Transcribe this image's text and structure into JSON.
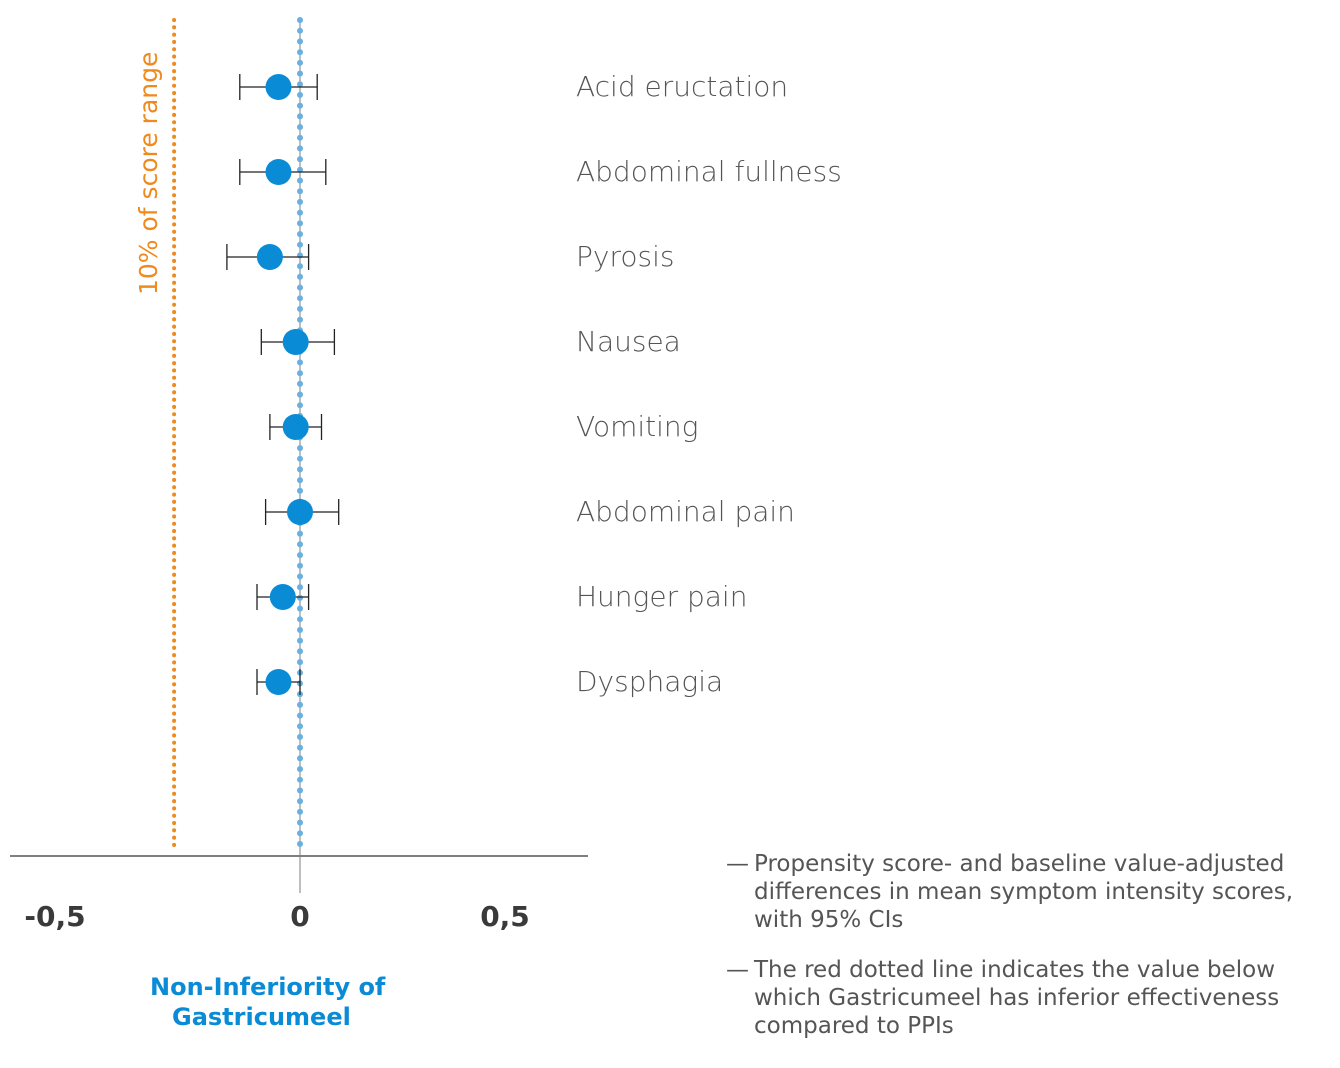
{
  "chart_data": {
    "type": "forest",
    "categories": [
      "Acid eructation",
      "Abdominal fullness",
      "Pyrosis",
      "Nausea",
      "Vomiting",
      "Abdominal pain",
      "Hunger pain",
      "Dysphagia"
    ],
    "series": [
      {
        "estimates": [
          -0.05,
          -0.05,
          -0.07,
          -0.01,
          -0.01,
          0.0,
          -0.04,
          -0.05
        ],
        "ci_low": [
          -0.14,
          -0.14,
          -0.17,
          -0.09,
          -0.07,
          -0.08,
          -0.1,
          -0.1
        ],
        "ci_high": [
          0.04,
          0.06,
          0.02,
          0.08,
          0.05,
          0.09,
          0.02,
          0.0
        ]
      }
    ],
    "threshold": {
      "value": -0.23,
      "label": "10% of score range",
      "color": "#ef8a1c"
    },
    "reference_line": {
      "value": 0,
      "color": "#6ab0e0"
    },
    "xticks": [
      "-0,5",
      "0",
      "0,5"
    ],
    "xtick_values": [
      -0.5,
      0,
      0.5
    ],
    "xlabel_lines": [
      "Non-Inferiority of",
      "Gastricumeel"
    ],
    "xlim": [
      -0.5,
      0.5
    ],
    "point_color": "#0a8bd6",
    "grid": false
  },
  "notes": [
    "Propensity score- and baseline value-adjusted differences in mean symptom intensity scores, with 95% CIs",
    "The red dotted line indicates the value below which Gastricumeel has inferior effectiveness compared to PPIs"
  ],
  "note_marker": "—"
}
